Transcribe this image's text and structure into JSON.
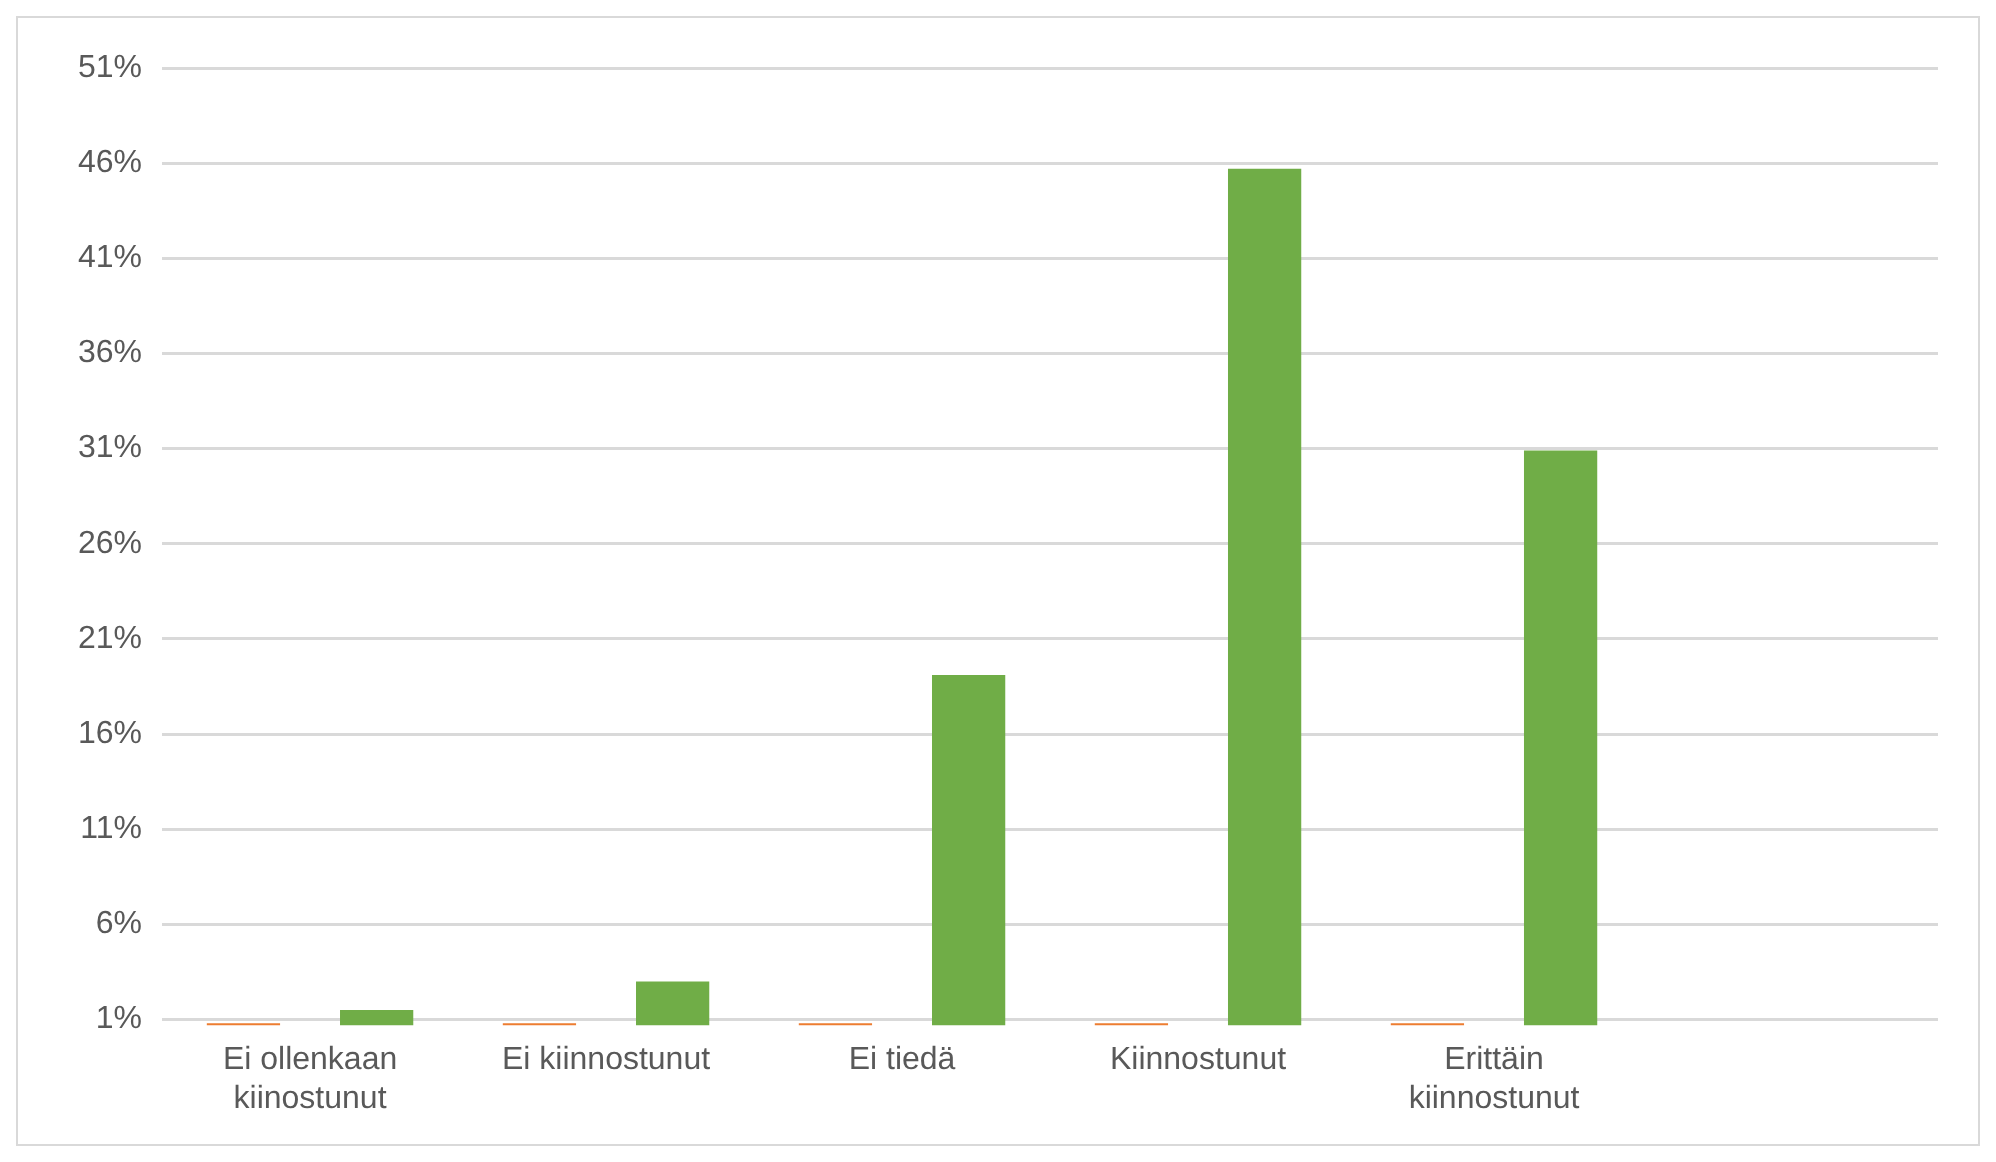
{
  "chart_data": {
    "type": "bar",
    "categories": [
      "Ei ollenkaan kiinostunut",
      "Ei kiinnostunut",
      "Ei tiedä",
      "Kiinnostunut",
      "Erittäin kiinnostunut",
      null
    ],
    "series": [
      {
        "color": "#ed7d31",
        "values": [
          0.8,
          0.8,
          0.8,
          0.8,
          0.8,
          null
        ]
      },
      {
        "color": "#70ad47",
        "values": [
          1.5,
          3.0,
          19.1,
          45.7,
          30.9,
          null
        ]
      }
    ],
    "ylim": [
      0.7,
      51
    ],
    "yticks": [
      {
        "value": 1,
        "label": "1%"
      },
      {
        "value": 6,
        "label": "6%"
      },
      {
        "value": 11,
        "label": "11%"
      },
      {
        "value": 16,
        "label": "16%"
      },
      {
        "value": 21,
        "label": "21%"
      },
      {
        "value": 26,
        "label": "26%"
      },
      {
        "value": 31,
        "label": "31%"
      },
      {
        "value": 36,
        "label": "36%"
      },
      {
        "value": 41,
        "label": "41%"
      },
      {
        "value": 46,
        "label": "46%"
      },
      {
        "value": 51,
        "label": "51%"
      }
    ],
    "grid": "y",
    "legend": false
  }
}
